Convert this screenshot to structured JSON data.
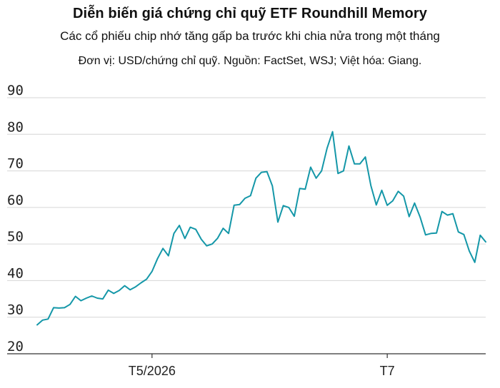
{
  "header": {
    "title": "Diễn biến giá chứng chỉ quỹ ETF Roundhill Memory",
    "subtitle": "Các cổ phiếu chip nhớ tăng gấp ba trước khi chia nửa trong một tháng",
    "note": "Đơn vị: USD/chứng chỉ quỹ. Nguồn: FactSet, WSJ; Việt hóa: Giang."
  },
  "chart_data": {
    "type": "line",
    "title": "Diễn biến giá chứng chỉ quỹ ETF Roundhill Memory",
    "subtitle": "Các cổ phiếu chip nhớ tăng gấp ba trước khi chia nửa trong một tháng",
    "ylim": [
      20,
      90
    ],
    "yticks": [
      90,
      80,
      70,
      60,
      50,
      40,
      30,
      20
    ],
    "grid": true,
    "xtick_labels": [
      "T5/2026",
      "T7"
    ],
    "xtick_index": [
      21,
      64
    ],
    "color": "#1497a8",
    "series": [
      {
        "values": [
          27.9,
          29.2,
          29.5,
          32.6,
          32.5,
          32.6,
          33.5,
          35.7,
          34.5,
          35.2,
          35.8,
          35.2,
          35.0,
          37.4,
          36.5,
          37.3,
          38.6,
          37.5,
          38.3,
          39.4,
          40.4,
          42.5,
          46.0,
          48.8,
          46.8,
          52.9,
          55.1,
          51.5,
          54.6,
          54.0,
          51.3,
          49.5,
          50.0,
          51.6,
          54.3,
          52.9,
          60.6,
          60.8,
          62.5,
          63.2,
          68.0,
          69.6,
          69.8,
          65.9,
          56.0,
          60.5,
          60.0,
          57.6,
          65.2,
          65.0,
          71.0,
          68.0,
          70.0,
          76.2,
          80.7,
          69.3,
          70.0,
          76.8,
          71.9,
          71.9,
          73.8,
          66.0,
          60.7,
          64.7,
          60.6,
          61.8,
          64.4,
          63.1,
          57.5,
          61.2,
          57.4,
          52.5,
          52.9,
          53.0,
          58.9,
          57.9,
          58.3,
          53.3,
          52.6,
          48.1,
          45.0,
          52.4,
          50.6
        ]
      }
    ]
  }
}
